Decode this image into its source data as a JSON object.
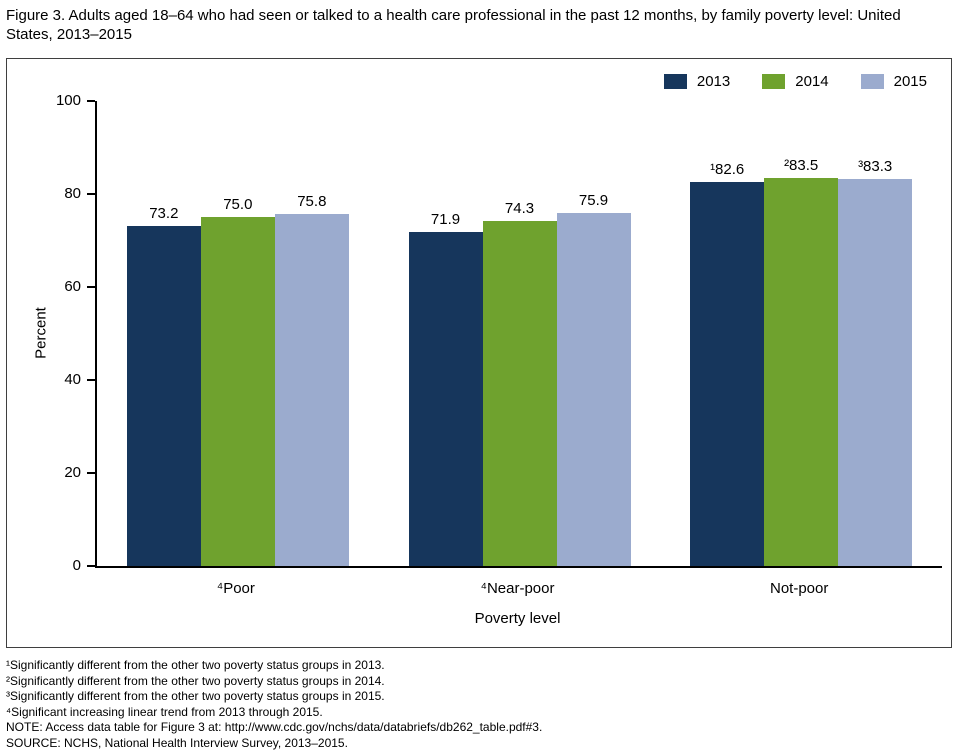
{
  "figure": {
    "title": "Figure 3. Adults aged 18–64 who had seen or talked to a health care professional in the past 12 months, by family poverty level: United States, 2013–2015"
  },
  "chart_data": {
    "type": "bar",
    "title": "Figure 3. Adults aged 18–64 who had seen or talked to a health care professional in the past 12 months, by family poverty level: United States, 2013–2015",
    "categories": [
      "⁴Poor",
      "⁴Near-poor",
      "Not-poor"
    ],
    "series": [
      {
        "name": "2013",
        "color": "#16365C",
        "values": [
          73.2,
          71.9,
          82.6
        ],
        "labels": [
          "73.2",
          "71.9",
          "¹82.6"
        ]
      },
      {
        "name": "2014",
        "color": "#6FA22E",
        "values": [
          75.0,
          74.3,
          83.5
        ],
        "labels": [
          "75.0",
          "74.3",
          "²83.5"
        ]
      },
      {
        "name": "2015",
        "color": "#9BABCE",
        "values": [
          75.8,
          75.9,
          83.3
        ],
        "labels": [
          "75.8",
          "75.9",
          "³83.3"
        ]
      }
    ],
    "xlabel": "Poverty level",
    "ylabel": "Percent",
    "ylim": [
      0,
      100
    ],
    "yticks": [
      0,
      20,
      40,
      60,
      80,
      100
    ],
    "grid": false,
    "legend_position": "top-right"
  },
  "footnotes": [
    "¹Significantly different from the other two poverty status groups in 2013.",
    "²Significantly different from the other two poverty status groups in 2014.",
    "³Significantly different from the other two poverty status groups in 2015.",
    "⁴Significant increasing linear trend from 2013 through 2015.",
    "NOTE: Access data table for Figure 3 at: http://www.cdc.gov/nchs/data/databriefs/db262_table.pdf#3.",
    "SOURCE: NCHS, National Health Interview Survey, 2013–2015."
  ]
}
